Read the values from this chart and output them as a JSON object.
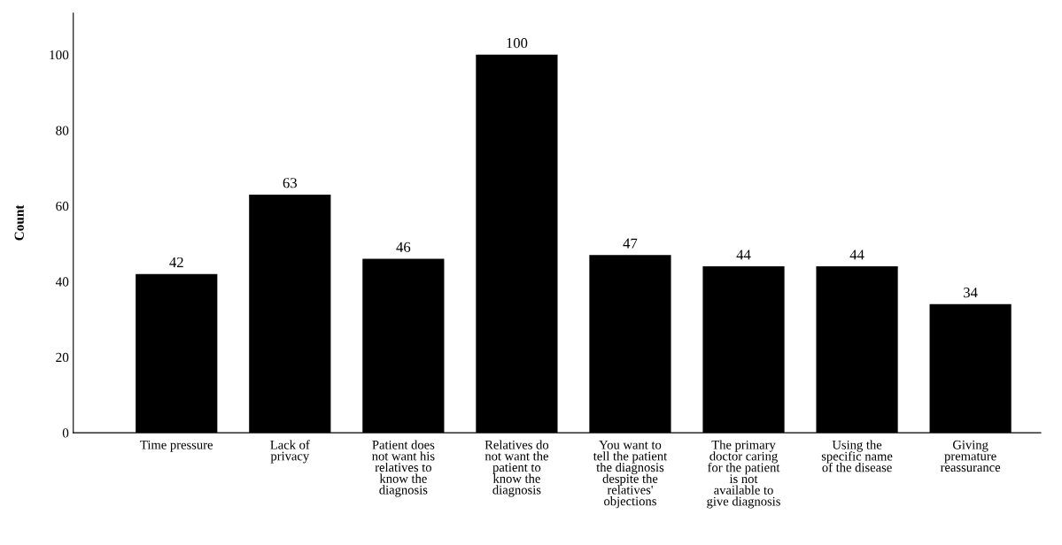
{
  "chart_data": {
    "type": "bar",
    "ylabel": "Count",
    "categories": [
      "Time pressure",
      "Lack of\nprivacy",
      "Patient does\nnot want his\nrelatives to\nknow the\ndiagnosis",
      "Relatives do\nnot want the\npatient to\nknow the\ndiagnosis",
      "You want to\ntell the patient\nthe diagnosis\ndespite the\nrelatives'\nobjections",
      "The primary\ndoctor caring\nfor the patient\nis not\navailable to\ngive diagnosis",
      "Using the\nspecific name\nof the disease",
      "Giving\npremature\nreassurance"
    ],
    "values": [
      42,
      63,
      46,
      100,
      47,
      44,
      44,
      34
    ],
    "color": "#000000",
    "ylim": [
      0,
      111
    ],
    "yticks": [
      0,
      20,
      40,
      60,
      80,
      100
    ],
    "grid": false,
    "data_labels": true
  }
}
